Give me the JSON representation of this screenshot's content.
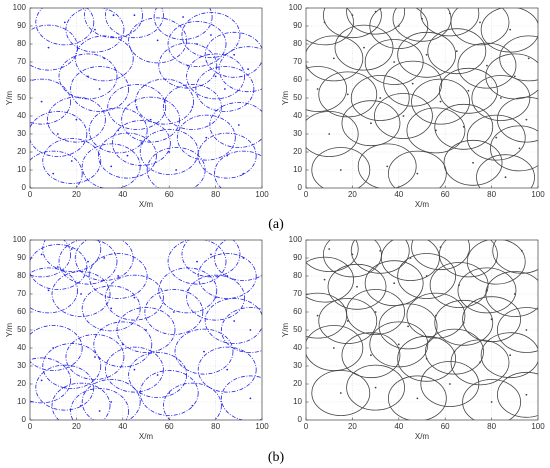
{
  "figure_labels": [
    "(a)",
    "(b)"
  ],
  "chart_data": [
    {
      "type": "scatter",
      "xlabel": "X/m",
      "ylabel": "Y/m",
      "color": "#2222ee",
      "line_style": "dashdot",
      "radius": 12.5,
      "xlim": [
        0,
        100
      ],
      "ylim": [
        0,
        100
      ],
      "xticks": [
        0,
        20,
        40,
        60,
        80,
        100
      ],
      "yticks": [
        0,
        10,
        20,
        30,
        40,
        50,
        60,
        70,
        80,
        90,
        100
      ],
      "grid": true,
      "x": [
        5,
        12,
        8,
        18,
        28,
        32,
        36,
        30,
        38,
        46,
        52,
        60,
        66,
        72,
        80,
        88,
        94,
        20,
        35,
        48,
        58,
        68,
        76,
        84,
        92,
        10,
        25,
        42,
        55,
        63,
        78,
        90,
        15,
        45,
        70,
        85
      ],
      "y": [
        48,
        30,
        78,
        15,
        88,
        72,
        96,
        55,
        32,
        45,
        38,
        20,
        95,
        80,
        62,
        74,
        66,
        38,
        12,
        25,
        48,
        68,
        28,
        55,
        8,
        8,
        62,
        18,
        82,
        10,
        85,
        35,
        92,
        96,
        45,
        18
      ]
    },
    {
      "type": "scatter",
      "xlabel": "X/m",
      "ylabel": "Y/m",
      "color": "#444444",
      "line_style": "solid",
      "radius": 12.5,
      "xlim": [
        0,
        100
      ],
      "ylim": [
        0,
        100
      ],
      "xticks": [
        0,
        20,
        40,
        60,
        80,
        100
      ],
      "yticks": [
        0,
        10,
        20,
        30,
        40,
        50,
        60,
        70,
        80,
        90,
        100
      ],
      "grid": true,
      "x": [
        8,
        20,
        30,
        40,
        50,
        62,
        75,
        88,
        96,
        12,
        25,
        38,
        52,
        65,
        78,
        90,
        5,
        18,
        32,
        46,
        58,
        70,
        84,
        95,
        10,
        28,
        42,
        56,
        68,
        82,
        92,
        15,
        35,
        48,
        72,
        86
      ],
      "y": [
        92,
        96,
        98,
        90,
        94,
        97,
        92,
        88,
        72,
        72,
        78,
        70,
        74,
        76,
        68,
        62,
        55,
        52,
        50,
        58,
        48,
        54,
        50,
        38,
        30,
        36,
        40,
        32,
        34,
        28,
        22,
        10,
        12,
        8,
        14,
        6
      ]
    },
    {
      "type": "scatter",
      "xlabel": "X/m",
      "ylabel": "Y/m",
      "color": "#2222ee",
      "line_style": "dashdot",
      "radius": 12.5,
      "xlim": [
        0,
        100
      ],
      "ylim": [
        0,
        100
      ],
      "xticks": [
        0,
        20,
        40,
        60,
        80,
        100
      ],
      "yticks": [
        0,
        10,
        20,
        30,
        40,
        50,
        60,
        70,
        80,
        90,
        100
      ],
      "grid": true,
      "x": [
        5,
        12,
        18,
        25,
        32,
        38,
        8,
        22,
        35,
        45,
        50,
        62,
        72,
        78,
        85,
        92,
        68,
        80,
        88,
        95,
        10,
        18,
        28,
        15,
        5,
        22,
        35,
        45,
        55,
        75,
        85,
        95,
        30,
        60,
        40,
        70
      ],
      "y": [
        92,
        85,
        95,
        88,
        90,
        80,
        72,
        70,
        62,
        68,
        50,
        60,
        88,
        92,
        80,
        90,
        72,
        68,
        55,
        50,
        40,
        30,
        35,
        18,
        22,
        8,
        10,
        28,
        25,
        38,
        28,
        12,
        5,
        15,
        42,
        8
      ]
    },
    {
      "type": "scatter",
      "xlabel": "X/m",
      "ylabel": "Y/m",
      "color": "#444444",
      "line_style": "solid",
      "radius": 12.5,
      "xlim": [
        0,
        100
      ],
      "ylim": [
        0,
        100
      ],
      "xticks": [
        0,
        20,
        40,
        60,
        80,
        100
      ],
      "yticks": [
        0,
        10,
        20,
        30,
        40,
        50,
        60,
        70,
        80,
        90,
        100
      ],
      "grid": true,
      "x": [
        10,
        20,
        32,
        45,
        58,
        70,
        82,
        93,
        8,
        22,
        38,
        52,
        66,
        78,
        90,
        5,
        18,
        30,
        44,
        56,
        68,
        80,
        95,
        12,
        28,
        40,
        52,
        64,
        75,
        88,
        15,
        30,
        48,
        62,
        80,
        95
      ],
      "y": [
        95,
        92,
        94,
        90,
        96,
        92,
        88,
        94,
        78,
        74,
        76,
        80,
        75,
        72,
        70,
        58,
        55,
        60,
        52,
        58,
        54,
        56,
        50,
        40,
        36,
        42,
        34,
        38,
        32,
        36,
        15,
        18,
        12,
        20,
        10,
        14
      ]
    }
  ]
}
